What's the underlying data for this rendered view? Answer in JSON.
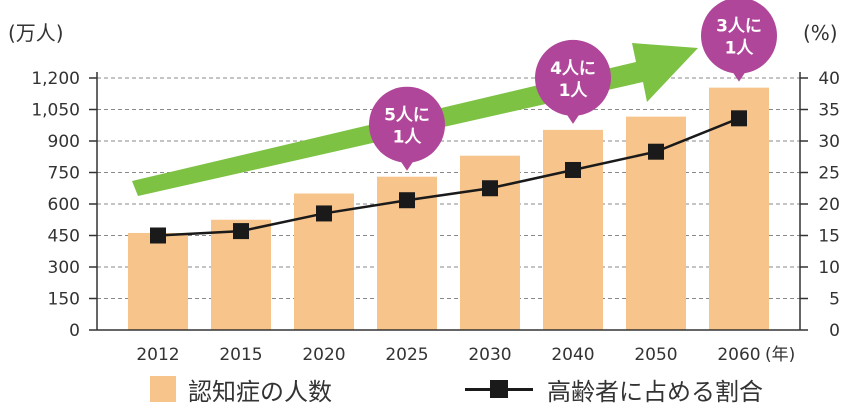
{
  "chart_data": {
    "type": "bar",
    "categories": [
      "2012",
      "2015",
      "2020",
      "2025",
      "2030",
      "2040",
      "2050",
      "2060"
    ],
    "x_suffix": "(年)",
    "left_axis": {
      "unit": "(万人)",
      "ylim": [
        0,
        1200
      ],
      "ticks": [
        "0",
        "150",
        "300",
        "450",
        "600",
        "750",
        "900",
        "1,050",
        "1,200"
      ]
    },
    "right_axis": {
      "unit": "(%)",
      "ylim": [
        0,
        40
      ],
      "ticks": [
        "0",
        "5",
        "10",
        "15",
        "20",
        "25",
        "30",
        "35",
        "40"
      ]
    },
    "series": [
      {
        "name": "認知症の人数",
        "type": "bar",
        "axis": "left",
        "color": "#f7c48b",
        "values": [
          462,
          525,
          650,
          730,
          830,
          953,
          1016,
          1154
        ]
      },
      {
        "name": "高齢者に占める割合",
        "type": "line",
        "axis": "right",
        "color": "#1a1a1a",
        "values": [
          15.0,
          15.7,
          18.5,
          20.6,
          22.5,
          25.4,
          28.3,
          33.6
        ]
      }
    ],
    "grid": "dashed horizontal",
    "annotations": [
      {
        "category": "2025",
        "line1": "5人に",
        "line2": "1人"
      },
      {
        "category": "2040",
        "line1": "4人に",
        "line2": "1人"
      },
      {
        "category": "2060",
        "line1": "3人に",
        "line2": "1人"
      }
    ],
    "bubble_color": "#b0469a",
    "arrow_color": "#7dc243",
    "legend_position": "bottom"
  }
}
